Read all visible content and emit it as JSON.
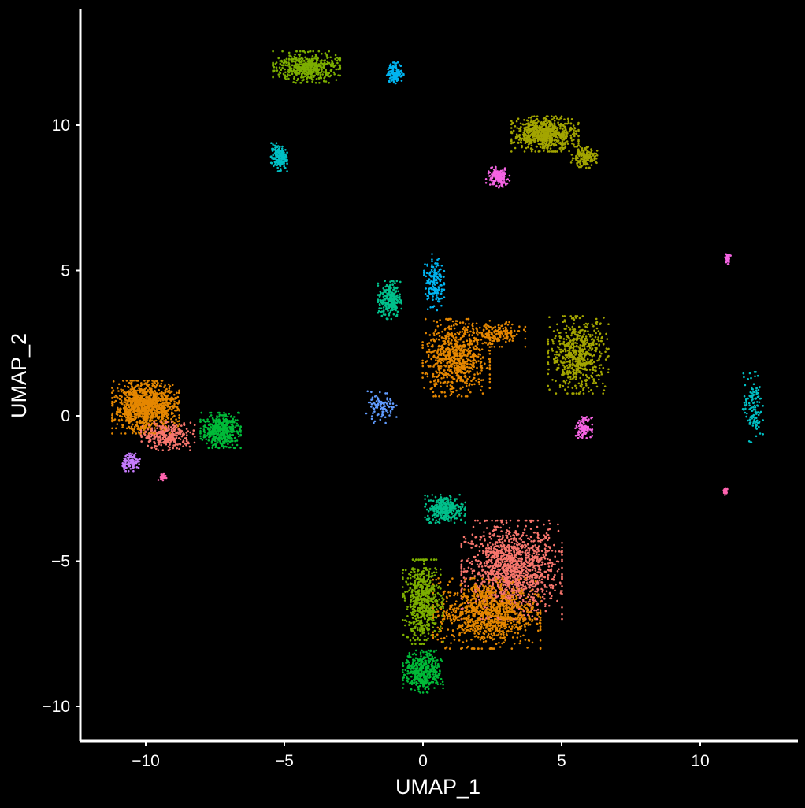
{
  "chart_data": {
    "type": "scatter",
    "title": "",
    "xlabel": "UMAP_1",
    "ylabel": "UMAP_2",
    "xlim": [
      -12.5,
      13.6
    ],
    "ylim": [
      -11.2,
      13.8
    ],
    "xticks": [
      -10,
      -5,
      0,
      5,
      10
    ],
    "yticks": [
      -10,
      -5,
      0,
      5,
      10
    ],
    "xtick_labels": [
      "−10",
      "−5",
      "0",
      "5",
      "10"
    ],
    "ytick_labels": [
      "−10",
      "−5",
      "0",
      "5",
      "10"
    ],
    "grid": false,
    "legend": "none",
    "background": "#000000",
    "axis_color": "#ffffff",
    "clusters": [
      {
        "color": "#F8766D",
        "center": [
          3.2,
          -5.3
        ],
        "spread": [
          1.5,
          1.4
        ],
        "count": 1400
      },
      {
        "color": "#E58700",
        "center": [
          2.3,
          -6.8
        ],
        "spread": [
          1.6,
          1.0
        ],
        "count": 1000
      },
      {
        "color": "#E58700",
        "center": [
          1.2,
          2.0
        ],
        "spread": [
          1.0,
          1.1
        ],
        "count": 700
      },
      {
        "color": "#E58700",
        "center": [
          2.6,
          2.8
        ],
        "spread": [
          0.9,
          0.35
        ],
        "count": 180
      },
      {
        "color": "#A3A500",
        "center": [
          4.4,
          9.7
        ],
        "spread": [
          1.0,
          0.5
        ],
        "count": 700
      },
      {
        "color": "#A3A500",
        "center": [
          5.8,
          8.9
        ],
        "spread": [
          0.4,
          0.3
        ],
        "count": 180
      },
      {
        "color": "#A3A500",
        "center": [
          5.6,
          2.1
        ],
        "spread": [
          0.9,
          1.1
        ],
        "count": 600
      },
      {
        "color": "#7CAE00",
        "center": [
          0.0,
          -6.4
        ],
        "spread": [
          0.6,
          1.2
        ],
        "count": 600
      },
      {
        "color": "#7CAE00",
        "center": [
          -4.2,
          12.0
        ],
        "spread": [
          1.0,
          0.45
        ],
        "count": 500
      },
      {
        "color": "#00BA38",
        "center": [
          -7.3,
          -0.5
        ],
        "spread": [
          0.6,
          0.5
        ],
        "count": 450
      },
      {
        "color": "#00BA38",
        "center": [
          0.0,
          -8.8
        ],
        "spread": [
          0.6,
          0.6
        ],
        "count": 420
      },
      {
        "color": "#00C08B",
        "center": [
          -1.2,
          4.0
        ],
        "spread": [
          0.35,
          0.55
        ],
        "count": 260
      },
      {
        "color": "#00C08B",
        "center": [
          0.8,
          -3.2
        ],
        "spread": [
          0.6,
          0.4
        ],
        "count": 300
      },
      {
        "color": "#00BFC4",
        "center": [
          -5.2,
          8.9
        ],
        "spread": [
          0.25,
          0.4
        ],
        "count": 170
      },
      {
        "color": "#00BFC4",
        "center": [
          11.9,
          0.3
        ],
        "spread": [
          0.3,
          1.0
        ],
        "count": 130
      },
      {
        "color": "#00B4F0",
        "center": [
          -1.0,
          11.8
        ],
        "spread": [
          0.25,
          0.3
        ],
        "count": 140
      },
      {
        "color": "#00B4F0",
        "center": [
          0.4,
          4.6
        ],
        "spread": [
          0.3,
          0.8
        ],
        "count": 160
      },
      {
        "color": "#619CFF",
        "center": [
          -1.5,
          0.3
        ],
        "spread": [
          0.45,
          0.45
        ],
        "count": 90
      },
      {
        "color": "#C77CFF",
        "center": [
          -10.5,
          -1.6
        ],
        "spread": [
          0.3,
          0.25
        ],
        "count": 100
      },
      {
        "color": "#F564E3",
        "center": [
          2.7,
          8.2
        ],
        "spread": [
          0.35,
          0.3
        ],
        "count": 150
      },
      {
        "color": "#F564E3",
        "center": [
          5.8,
          -0.4
        ],
        "spread": [
          0.25,
          0.3
        ],
        "count": 110
      },
      {
        "color": "#F564E3",
        "center": [
          11.0,
          5.4
        ],
        "spread": [
          0.08,
          0.15
        ],
        "count": 40
      },
      {
        "color": "#FF64B0",
        "center": [
          -9.4,
          -2.1
        ],
        "spread": [
          0.12,
          0.1
        ],
        "count": 30
      },
      {
        "color": "#FF64B0",
        "center": [
          10.9,
          -2.6
        ],
        "spread": [
          0.08,
          0.1
        ],
        "count": 25
      },
      {
        "color": "#E58700",
        "center": [
          -10.0,
          0.3
        ],
        "spread": [
          1.0,
          0.75
        ],
        "count": 1200
      },
      {
        "color": "#F8766D",
        "center": [
          -9.2,
          -0.7
        ],
        "spread": [
          0.8,
          0.4
        ],
        "count": 300
      }
    ]
  }
}
